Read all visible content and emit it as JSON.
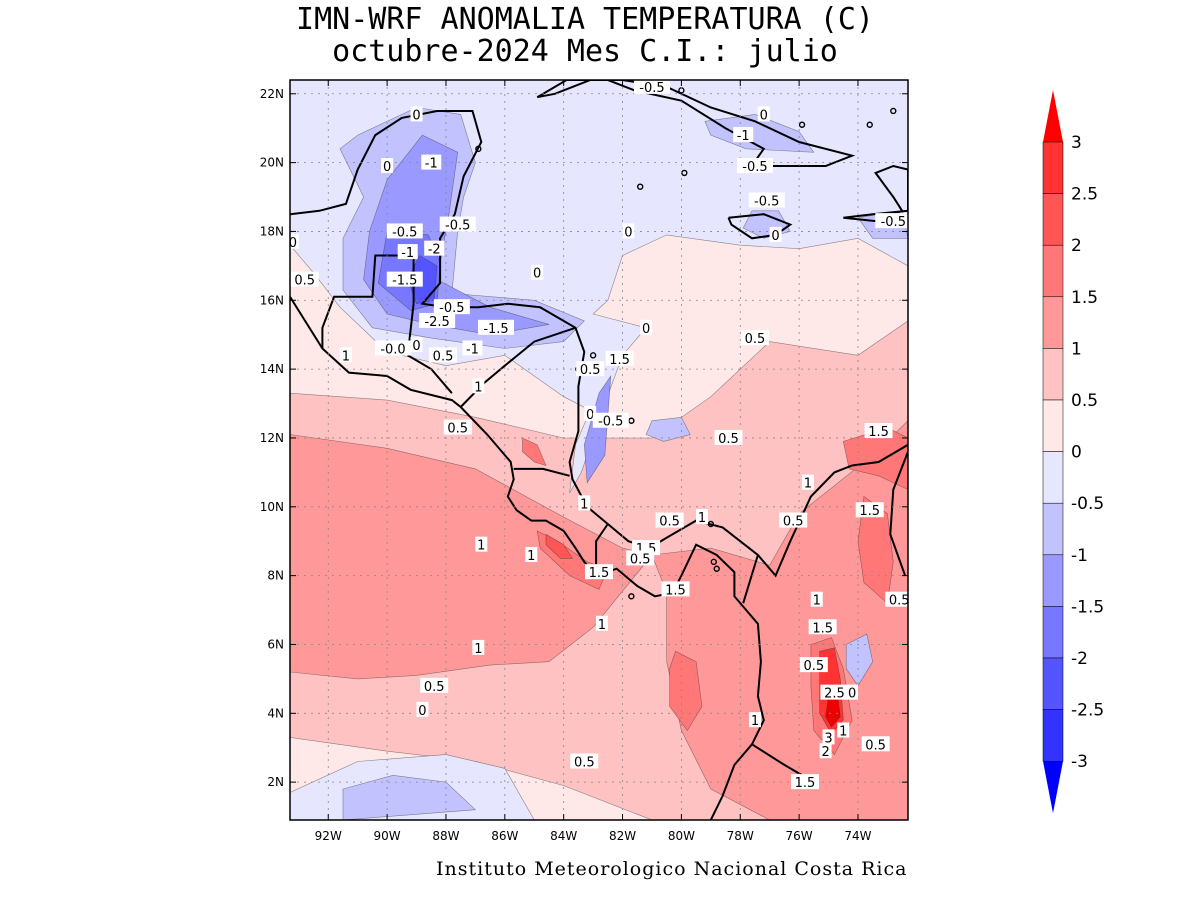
{
  "title_line1": "IMN-WRF  ANOMALIA TEMPERATURA (C)",
  "title_line2": "octubre-2024 Mes C.I.: julio",
  "footer": "Instituto Meteorologico Nacional Costa Rica",
  "map": {
    "lon_range": [
      -93.3,
      -72.3
    ],
    "lat_range": [
      0.9,
      22.4
    ],
    "lon_ticks": [
      "92W",
      "90W",
      "88W",
      "86W",
      "84W",
      "82W",
      "80W",
      "78W",
      "76W",
      "74W"
    ],
    "lat_ticks": [
      "22N",
      "20N",
      "18N",
      "16N",
      "14N",
      "12N",
      "10N",
      "8N",
      "6N",
      "4N",
      "2N"
    ],
    "contour_labels": [
      {
        "t": "0",
        "lon": -89.0,
        "lat": 21.4
      },
      {
        "t": "-0.5",
        "lon": -81.0,
        "lat": 22.2
      },
      {
        "t": "0",
        "lon": -77.2,
        "lat": 21.4
      },
      {
        "t": "-1",
        "lon": -77.9,
        "lat": 20.8
      },
      {
        "t": "-0.5",
        "lon": -77.5,
        "lat": 19.9
      },
      {
        "t": "-0.5",
        "lon": -77.1,
        "lat": 18.9
      },
      {
        "t": "0",
        "lon": -76.8,
        "lat": 17.9
      },
      {
        "t": "-0.5",
        "lon": -72.8,
        "lat": 18.3
      },
      {
        "t": "-1",
        "lon": -88.5,
        "lat": 20.0
      },
      {
        "t": "0",
        "lon": -90.0,
        "lat": 19.9
      },
      {
        "t": "0",
        "lon": -81.8,
        "lat": 18.0
      },
      {
        "t": "-0.5",
        "lon": -89.4,
        "lat": 18.0
      },
      {
        "t": "-0.5",
        "lon": -87.6,
        "lat": 18.2
      },
      {
        "t": "-1",
        "lon": -89.3,
        "lat": 17.4
      },
      {
        "t": "-2",
        "lon": -88.4,
        "lat": 17.5
      },
      {
        "t": "-1.5",
        "lon": -89.4,
        "lat": 16.6
      },
      {
        "t": "0",
        "lon": -93.2,
        "lat": 17.7
      },
      {
        "t": "0.5",
        "lon": -92.8,
        "lat": 16.6
      },
      {
        "t": "0",
        "lon": -84.9,
        "lat": 16.8
      },
      {
        "t": "-0.5",
        "lon": -87.8,
        "lat": 15.8
      },
      {
        "t": "-2.5",
        "lon": -88.3,
        "lat": 15.4
      },
      {
        "t": "-1.5",
        "lon": -86.3,
        "lat": 15.2
      },
      {
        "t": "0",
        "lon": -81.2,
        "lat": 15.2
      },
      {
        "t": "-0.0",
        "lon": -89.8,
        "lat": 14.6
      },
      {
        "t": "0",
        "lon": -89.0,
        "lat": 14.7
      },
      {
        "t": "0.5",
        "lon": -88.1,
        "lat": 14.4
      },
      {
        "t": "-1",
        "lon": -87.1,
        "lat": 14.6
      },
      {
        "t": "1",
        "lon": -91.4,
        "lat": 14.4
      },
      {
        "t": "1.5",
        "lon": -82.1,
        "lat": 14.3
      },
      {
        "t": "0.5",
        "lon": -83.1,
        "lat": 14.0
      },
      {
        "t": "0.5",
        "lon": -77.5,
        "lat": 14.9
      },
      {
        "t": "1",
        "lon": -86.9,
        "lat": 13.5
      },
      {
        "t": "0",
        "lon": -83.1,
        "lat": 12.7
      },
      {
        "t": "-0.5",
        "lon": -82.4,
        "lat": 12.5
      },
      {
        "t": "0.5",
        "lon": -87.6,
        "lat": 12.3
      },
      {
        "t": "0.5",
        "lon": -78.4,
        "lat": 12.0
      },
      {
        "t": "1.5",
        "lon": -73.3,
        "lat": 12.2
      },
      {
        "t": "1",
        "lon": -75.7,
        "lat": 10.7
      },
      {
        "t": "1",
        "lon": -83.3,
        "lat": 10.1
      },
      {
        "t": "0.5",
        "lon": -80.4,
        "lat": 9.6
      },
      {
        "t": "1",
        "lon": -79.3,
        "lat": 9.7
      },
      {
        "t": "0.5",
        "lon": -76.2,
        "lat": 9.6
      },
      {
        "t": "1.5",
        "lon": -73.6,
        "lat": 9.9
      },
      {
        "t": "1",
        "lon": -86.8,
        "lat": 8.9
      },
      {
        "t": "1",
        "lon": -85.1,
        "lat": 8.6
      },
      {
        "t": "1.5",
        "lon": -81.2,
        "lat": 8.8
      },
      {
        "t": "0.5",
        "lon": -81.4,
        "lat": 8.5
      },
      {
        "t": "1.5",
        "lon": -82.8,
        "lat": 8.1
      },
      {
        "t": "1.5",
        "lon": -80.2,
        "lat": 7.6
      },
      {
        "t": "1",
        "lon": -75.4,
        "lat": 7.3
      },
      {
        "t": "0.5",
        "lon": -72.6,
        "lat": 7.3
      },
      {
        "t": "1.5",
        "lon": -75.2,
        "lat": 6.5
      },
      {
        "t": "1",
        "lon": -82.7,
        "lat": 6.6
      },
      {
        "t": "1",
        "lon": -86.9,
        "lat": 5.9
      },
      {
        "t": "0.5",
        "lon": -75.5,
        "lat": 5.4
      },
      {
        "t": "2.5",
        "lon": -74.8,
        "lat": 4.6
      },
      {
        "t": "0",
        "lon": -74.2,
        "lat": 4.6
      },
      {
        "t": "0.5",
        "lon": -88.4,
        "lat": 4.8
      },
      {
        "t": "0",
        "lon": -88.8,
        "lat": 4.1
      },
      {
        "t": "1",
        "lon": -77.5,
        "lat": 3.8
      },
      {
        "t": "3",
        "lon": -75.0,
        "lat": 3.3
      },
      {
        "t": "1",
        "lon": -74.5,
        "lat": 3.5
      },
      {
        "t": "2",
        "lon": -75.1,
        "lat": 2.9
      },
      {
        "t": "0.5",
        "lon": -73.4,
        "lat": 3.1
      },
      {
        "t": "0.5",
        "lon": -83.3,
        "lat": 2.6
      },
      {
        "t": "1.5",
        "lon": -75.8,
        "lat": 2.0
      }
    ]
  },
  "colorbar": {
    "levels": [
      "3",
      "2.5",
      "2",
      "1.5",
      "1",
      "0.5",
      "0",
      "-0.5",
      "-1",
      "-1.5",
      "-2",
      "-2.5",
      "-3"
    ],
    "colors_top_to_bottom": [
      "#ff0000",
      "#ff3333",
      "#ff5555",
      "#ff7777",
      "#ff9999",
      "#ffc2c2",
      "#ffe8e8",
      "#e6e6ff",
      "#c2c2ff",
      "#9999ff",
      "#7777ff",
      "#5555ff",
      "#3333ff",
      "#0000ff"
    ]
  },
  "colors": {
    "warm_1": "#ffe8e8",
    "warm_2": "#ffc2c2",
    "warm_3": "#ff9999",
    "warm_4": "#ff7777",
    "warm_5": "#ff5555",
    "warm_6": "#ff3333",
    "warm_7": "#ee0000",
    "cool_1": "#e6e6ff",
    "cool_2": "#c2c2ff",
    "cool_3": "#9999ff",
    "cool_4": "#7777ff",
    "cool_5": "#5555ff"
  }
}
